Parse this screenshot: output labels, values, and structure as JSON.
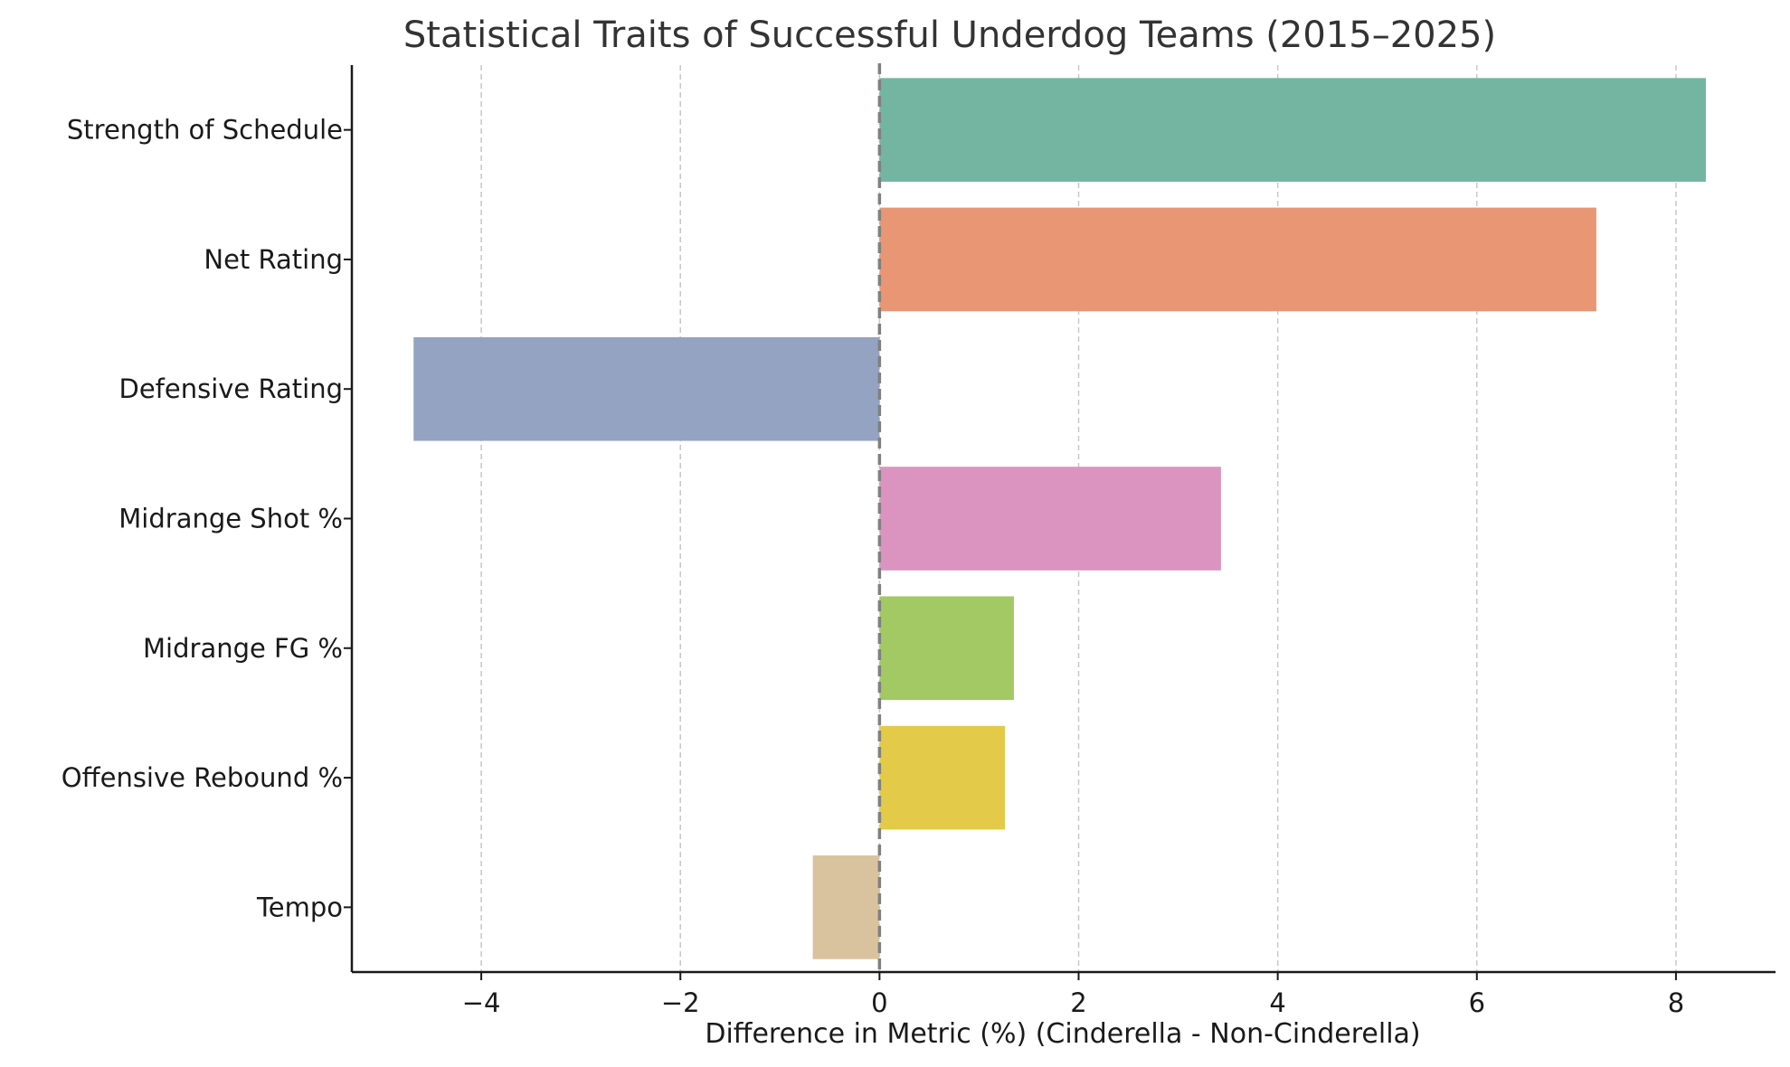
{
  "chart_data": {
    "type": "bar",
    "orientation": "horizontal",
    "title": "Statistical Traits of Successful Underdog Teams (2015–2025)",
    "xlabel": "Difference in Metric (%) (Cinderella - Non-Cinderella)",
    "ylabel": "",
    "xlim": [
      -5.3,
      9.0
    ],
    "xticks": [
      -4,
      -2,
      0,
      2,
      4,
      6,
      8
    ],
    "xtick_labels": [
      "−4",
      "−2",
      "0",
      "2",
      "4",
      "6",
      "8"
    ],
    "grid": "vertical dashed",
    "zero_line": "dashed",
    "categories": [
      "Strength of Schedule",
      "Net Rating",
      "Defensive Rating",
      "Midrange Shot %",
      "Midrange FG %",
      "Offensive Rebound %",
      "Tempo"
    ],
    "values": [
      8.3,
      7.2,
      -4.68,
      3.43,
      1.35,
      1.26,
      -0.67
    ],
    "colors": [
      "#73b5a0",
      "#e89674",
      "#94a3c1",
      "#db94c0",
      "#a3c964",
      "#e3ca48",
      "#d9c29e"
    ]
  }
}
